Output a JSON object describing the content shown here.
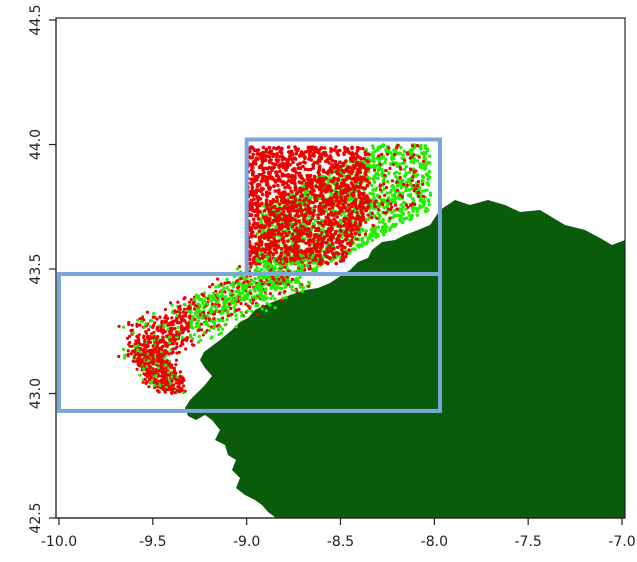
{
  "map": {
    "type": "scatter-map",
    "x_axis": {
      "ticks": [
        "-10.0",
        "-9.5",
        "-9.0",
        "-8.5",
        "-8.0",
        "-7.5",
        "-7.0"
      ],
      "tick_values": [
        -10.0,
        -9.5,
        -9.0,
        -8.5,
        -8.0,
        -7.5,
        -7.0
      ],
      "range": [
        -10.0,
        -7.0
      ]
    },
    "y_axis": {
      "ticks": [
        "42.5",
        "43.0",
        "43.5",
        "44.0",
        "44.5"
      ],
      "tick_values": [
        42.5,
        43.0,
        43.5,
        44.0,
        44.5
      ],
      "range": [
        42.5,
        44.5
      ],
      "label_orientation": "vertical"
    },
    "colors": {
      "land": "#0a5c0a",
      "points_green": "#22ee00",
      "points_red": "#ee0000",
      "boxes": "#7aa7d8"
    },
    "boxes": [
      {
        "lon_min": -9.0,
        "lon_max": -7.97,
        "lat_min": 43.48,
        "lat_max": 44.02
      },
      {
        "lon_min": -10.0,
        "lon_max": -7.97,
        "lat_min": 42.93,
        "lat_max": 43.48
      }
    ],
    "point_regions": [
      {
        "color": "red",
        "lon_range": [
          -9.0,
          -8.3
        ],
        "lat_range": [
          43.5,
          44.0
        ]
      },
      {
        "color": "green",
        "lon_range": [
          -8.5,
          -8.02
        ],
        "lat_range": [
          43.55,
          44.0
        ]
      },
      {
        "color": "mixed",
        "lon_range": [
          -9.6,
          -8.7
        ],
        "lat_range": [
          43.0,
          43.5
        ]
      }
    ],
    "grid": false
  }
}
